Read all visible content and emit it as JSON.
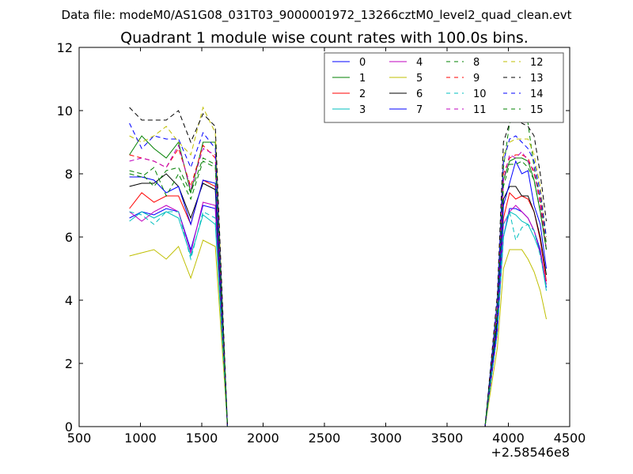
{
  "header": {
    "data_file": "Data file: modeM0/AS1G08_031T03_9000001972_13266cztM0_level2_quad_clean.evt"
  },
  "chart_data": {
    "type": "line",
    "title": "Quadrant 1 module wise count rates with 100.0s bins.",
    "xlabel": "",
    "ylabel": "",
    "x_offset_label": "+2.58546e8",
    "xlim": [
      500,
      4500
    ],
    "ylim": [
      0,
      12
    ],
    "xticks": [
      500,
      1000,
      1500,
      2000,
      2500,
      3000,
      3500,
      4000,
      4500
    ],
    "yticks": [
      0,
      2,
      4,
      6,
      8,
      10,
      12
    ],
    "grid": false,
    "legend": {
      "placement": "top-right",
      "columns": 4
    },
    "x": [
      910,
      1010,
      1110,
      1210,
      1310,
      1410,
      1510,
      1610,
      1710,
      1810,
      1910,
      2010,
      2110,
      2210,
      2310,
      2410,
      2510,
      2610,
      2710,
      2810,
      2910,
      3010,
      3110,
      3210,
      3310,
      3410,
      3510,
      3610,
      3710,
      3810,
      3910,
      3960,
      4010,
      4060,
      4110,
      4160,
      4210,
      4260,
      4310
    ],
    "series": [
      {
        "name": "0",
        "color": "#0000ff",
        "dash": "solid",
        "values": [
          6.6,
          6.8,
          6.7,
          6.9,
          6.8,
          5.6,
          7.0,
          6.9,
          0,
          0,
          0,
          0,
          0,
          0,
          0,
          0,
          0,
          0,
          0,
          0,
          0,
          0,
          0,
          0,
          0,
          0,
          0,
          0,
          0,
          0,
          3.0,
          6.0,
          6.9,
          6.9,
          6.8,
          6.6,
          6.2,
          5.6,
          4.4
        ]
      },
      {
        "name": "1",
        "color": "#008000",
        "dash": "solid",
        "values": [
          8.6,
          9.2,
          8.8,
          8.5,
          9.0,
          7.4,
          9.0,
          9.0,
          0,
          0,
          0,
          0,
          0,
          0,
          0,
          0,
          0,
          0,
          0,
          0,
          0,
          0,
          0,
          0,
          0,
          0,
          0,
          0,
          0,
          0,
          3.8,
          7.8,
          8.4,
          8.5,
          8.5,
          8.4,
          7.8,
          6.8,
          5.6
        ]
      },
      {
        "name": "2",
        "color": "#ff0000",
        "dash": "solid",
        "values": [
          6.9,
          7.4,
          7.1,
          7.3,
          7.3,
          6.4,
          7.8,
          7.6,
          0,
          0,
          0,
          0,
          0,
          0,
          0,
          0,
          0,
          0,
          0,
          0,
          0,
          0,
          0,
          0,
          0,
          0,
          0,
          0,
          0,
          0,
          3.1,
          6.6,
          7.4,
          7.2,
          7.3,
          7.2,
          6.8,
          5.9,
          4.6
        ]
      },
      {
        "name": "3",
        "color": "#00bfbf",
        "dash": "solid",
        "values": [
          6.5,
          6.8,
          6.6,
          6.8,
          6.6,
          5.4,
          6.7,
          6.4,
          0,
          0,
          0,
          0,
          0,
          0,
          0,
          0,
          0,
          0,
          0,
          0,
          0,
          0,
          0,
          0,
          0,
          0,
          0,
          0,
          0,
          0,
          3.0,
          6.0,
          6.8,
          6.7,
          6.5,
          6.4,
          6.0,
          5.5,
          4.3
        ]
      },
      {
        "name": "4",
        "color": "#bf00bf",
        "dash": "solid",
        "values": [
          6.8,
          6.5,
          6.8,
          7.0,
          6.8,
          5.5,
          7.1,
          7.0,
          0,
          0,
          0,
          0,
          0,
          0,
          0,
          0,
          0,
          0,
          0,
          0,
          0,
          0,
          0,
          0,
          0,
          0,
          0,
          0,
          0,
          0,
          3.0,
          6.4,
          6.8,
          7.0,
          6.8,
          6.6,
          6.2,
          5.5,
          4.5
        ]
      },
      {
        "name": "5",
        "color": "#bfbf00",
        "dash": "solid",
        "values": [
          5.4,
          5.5,
          5.6,
          5.3,
          5.7,
          4.7,
          5.9,
          5.7,
          0,
          0,
          0,
          0,
          0,
          0,
          0,
          0,
          0,
          0,
          0,
          0,
          0,
          0,
          0,
          0,
          0,
          0,
          0,
          0,
          0,
          0,
          2.5,
          5.0,
          5.6,
          5.6,
          5.6,
          5.3,
          4.9,
          4.3,
          3.4
        ]
      },
      {
        "name": "6",
        "color": "#000000",
        "dash": "solid",
        "values": [
          7.6,
          7.7,
          7.7,
          8.0,
          7.6,
          6.6,
          7.7,
          7.5,
          0,
          0,
          0,
          0,
          0,
          0,
          0,
          0,
          0,
          0,
          0,
          0,
          0,
          0,
          0,
          0,
          0,
          0,
          0,
          0,
          0,
          0,
          3.4,
          7.2,
          7.6,
          7.6,
          7.3,
          7.3,
          6.8,
          6.0,
          4.8
        ]
      },
      {
        "name": "7",
        "color": "#0000ff",
        "dash": "solid",
        "values": [
          7.9,
          7.9,
          7.8,
          7.4,
          7.6,
          6.4,
          7.8,
          7.7,
          0,
          0,
          0,
          0,
          0,
          0,
          0,
          0,
          0,
          0,
          0,
          0,
          0,
          0,
          0,
          0,
          0,
          0,
          0,
          0,
          0,
          0,
          3.2,
          7.0,
          7.7,
          8.4,
          8.0,
          8.1,
          7.0,
          6.4,
          5.0
        ]
      },
      {
        "name": "8",
        "color": "#008000",
        "dash": "dashed",
        "values": [
          8.0,
          7.9,
          8.2,
          7.3,
          8.0,
          7.2,
          8.4,
          8.2,
          0,
          0,
          0,
          0,
          0,
          0,
          0,
          0,
          0,
          0,
          0,
          0,
          0,
          0,
          0,
          0,
          0,
          0,
          0,
          0,
          0,
          0,
          3.6,
          8.2,
          9.6,
          9.8,
          9.9,
          9.6,
          8.2,
          7.2,
          5.8
        ]
      },
      {
        "name": "9",
        "color": "#ff0000",
        "dash": "dashed",
        "values": [
          8.6,
          8.5,
          8.4,
          8.2,
          8.8,
          7.6,
          8.9,
          8.5,
          0,
          0,
          0,
          0,
          0,
          0,
          0,
          0,
          0,
          0,
          0,
          0,
          0,
          0,
          0,
          0,
          0,
          0,
          0,
          0,
          0,
          0,
          3.8,
          8.0,
          8.5,
          8.6,
          8.6,
          8.5,
          8.0,
          7.2,
          5.6
        ]
      },
      {
        "name": "10",
        "color": "#00bfbf",
        "dash": "dashed",
        "values": [
          6.8,
          6.7,
          6.4,
          6.8,
          6.8,
          5.3,
          6.8,
          6.6,
          0,
          0,
          0,
          0,
          0,
          0,
          0,
          0,
          0,
          0,
          0,
          0,
          0,
          0,
          0,
          0,
          0,
          0,
          0,
          0,
          0,
          0,
          3.0,
          6.4,
          6.8,
          5.9,
          6.3,
          6.4,
          6.2,
          5.4,
          4.4
        ]
      },
      {
        "name": "11",
        "color": "#bf00bf",
        "dash": "dashed",
        "values": [
          8.4,
          8.5,
          8.4,
          8.2,
          8.9,
          7.5,
          8.8,
          8.6,
          0,
          0,
          0,
          0,
          0,
          0,
          0,
          0,
          0,
          0,
          0,
          0,
          0,
          0,
          0,
          0,
          0,
          0,
          0,
          0,
          0,
          0,
          3.8,
          7.8,
          8.6,
          8.5,
          8.7,
          8.4,
          8.1,
          7.0,
          5.6
        ]
      },
      {
        "name": "12",
        "color": "#bfbf00",
        "dash": "dashed",
        "values": [
          9.2,
          9.0,
          9.2,
          9.5,
          9.0,
          8.6,
          10.1,
          9.3,
          0,
          0,
          0,
          0,
          0,
          0,
          0,
          0,
          0,
          0,
          0,
          0,
          0,
          0,
          0,
          0,
          0,
          0,
          0,
          0,
          0,
          0,
          4.0,
          8.6,
          9.0,
          9.1,
          9.1,
          9.1,
          8.6,
          7.6,
          6.0
        ]
      },
      {
        "name": "13",
        "color": "#000000",
        "dash": "dashed",
        "values": [
          10.1,
          9.7,
          9.7,
          9.7,
          10.0,
          9.0,
          9.9,
          9.5,
          0,
          0,
          0,
          0,
          0,
          0,
          0,
          0,
          0,
          0,
          0,
          0,
          0,
          0,
          0,
          0,
          0,
          0,
          0,
          0,
          0,
          0,
          4.2,
          9.0,
          9.6,
          9.8,
          9.6,
          9.5,
          9.2,
          8.0,
          6.5
        ]
      },
      {
        "name": "14",
        "color": "#0000ff",
        "dash": "dashed",
        "values": [
          9.6,
          8.8,
          9.2,
          9.1,
          9.1,
          8.2,
          9.3,
          8.8,
          0,
          0,
          0,
          0,
          0,
          0,
          0,
          0,
          0,
          0,
          0,
          0,
          0,
          0,
          0,
          0,
          0,
          0,
          0,
          0,
          0,
          0,
          4.0,
          8.4,
          9.1,
          9.2,
          9.0,
          8.8,
          8.4,
          7.4,
          6.0
        ]
      },
      {
        "name": "15",
        "color": "#008000",
        "dash": "dashed",
        "values": [
          8.1,
          8.0,
          7.6,
          8.1,
          8.2,
          7.4,
          8.5,
          8.3,
          0,
          0,
          0,
          0,
          0,
          0,
          0,
          0,
          0,
          0,
          0,
          0,
          0,
          0,
          0,
          0,
          0,
          0,
          0,
          0,
          0,
          0,
          3.6,
          7.6,
          8.3,
          8.3,
          8.4,
          8.2,
          7.8,
          6.8,
          5.6
        ]
      }
    ]
  }
}
